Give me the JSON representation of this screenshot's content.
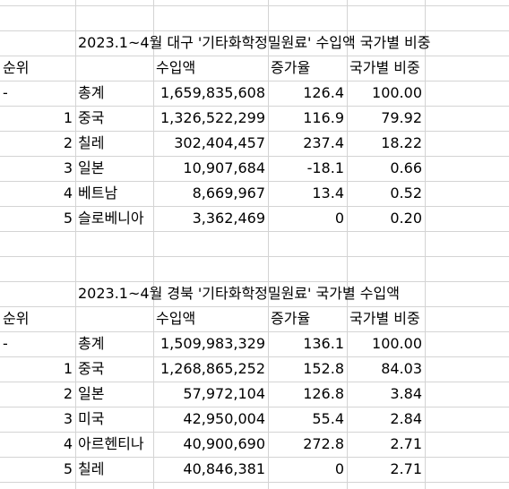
{
  "tables": [
    {
      "title": "2023.1~4월 대구 '기타화학정밀원료' 수입액 국가별 비중",
      "headers": {
        "rank": "순위",
        "amount": "수입액",
        "growth": "증가율",
        "share": "국가별 비중"
      },
      "rows": [
        {
          "rank": "-",
          "country": "총계",
          "amount": "1,659,835,608",
          "growth": "126.4",
          "share": "100.00"
        },
        {
          "rank": "1",
          "country": "중국",
          "amount": "1,326,522,299",
          "growth": "116.9",
          "share": "79.92"
        },
        {
          "rank": "2",
          "country": "칠레",
          "amount": "302,404,457",
          "growth": "237.4",
          "share": "18.22"
        },
        {
          "rank": "3",
          "country": "일본",
          "amount": "10,907,684",
          "growth": "-18.1",
          "share": "0.66"
        },
        {
          "rank": "4",
          "country": "베트남",
          "amount": "8,669,967",
          "growth": "13.4",
          "share": "0.52"
        },
        {
          "rank": "5",
          "country": "슬로베니아",
          "amount": "3,362,469",
          "growth": "0",
          "share": "0.20"
        }
      ]
    },
    {
      "title": "2023.1~4월 경북 '기타화학정밀원료' 국가별 수입액",
      "headers": {
        "rank": "순위",
        "amount": "수입액",
        "growth": "증가율",
        "share": "국가별 비중"
      },
      "rows": [
        {
          "rank": "-",
          "country": "총계",
          "amount": "1,509,983,329",
          "growth": "136.1",
          "share": "100.00"
        },
        {
          "rank": "1",
          "country": "중국",
          "amount": "1,268,865,252",
          "growth": "152.8",
          "share": "84.03"
        },
        {
          "rank": "2",
          "country": "일본",
          "amount": "57,972,104",
          "growth": "126.8",
          "share": "3.84"
        },
        {
          "rank": "3",
          "country": "미국",
          "amount": "42,950,004",
          "growth": "55.4",
          "share": "2.84"
        },
        {
          "rank": "4",
          "country": "아르헨티나",
          "amount": "40,900,690",
          "growth": "272.8",
          "share": "2.71"
        },
        {
          "rank": "5",
          "country": "칠레",
          "amount": "40,846,381",
          "growth": "0",
          "share": "2.71"
        }
      ]
    }
  ]
}
